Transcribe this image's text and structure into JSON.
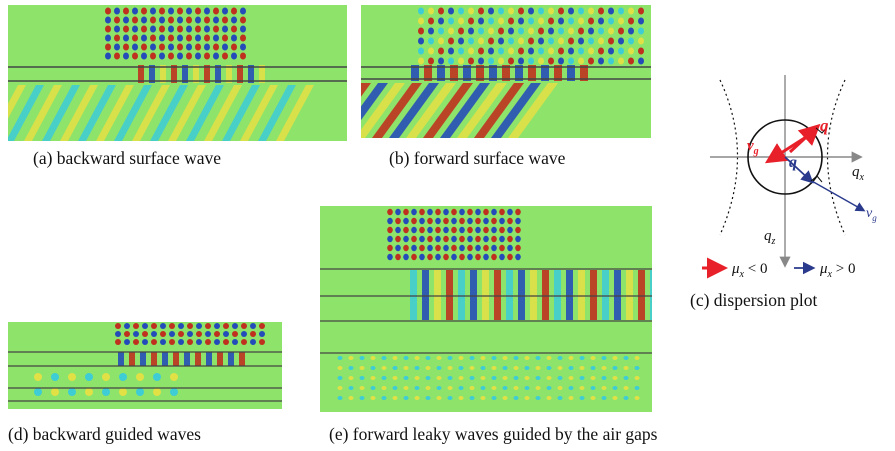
{
  "figure": {
    "panels": [
      {
        "id": "a",
        "caption": "(a) backward surface wave"
      },
      {
        "id": "b",
        "caption": "(b) forward surface wave"
      },
      {
        "id": "c",
        "caption": "(c) dispersion plot"
      },
      {
        "id": "d",
        "caption": "(d) backward guided waves"
      },
      {
        "id": "e",
        "caption": "(e) forward leaky waves guided by the air gaps"
      }
    ]
  },
  "dispersion": {
    "axis_x": "q",
    "axis_x_sub": "x",
    "axis_z": "q",
    "axis_z_sub": "z",
    "vec_q_red": "q",
    "vec_vg_red": "v",
    "vec_vg_red_sub": "g",
    "vec_q_blue": "q",
    "vec_vg_blue": "v",
    "vec_vg_blue_sub": "g",
    "legend_red": "μ",
    "legend_red_sub": "x",
    "legend_red_rel": " < 0",
    "legend_blue": "μ",
    "legend_blue_sub": "x",
    "legend_blue_rel": " > 0",
    "colors": {
      "red": "#e8202a",
      "blue": "#2a3a8c",
      "axis": "#888888"
    }
  },
  "colormap": {
    "bg": "#8ee36a",
    "red": "#c81010",
    "blue": "#1030c8",
    "yellow": "#f0e040",
    "cyan": "#30c8e8"
  }
}
